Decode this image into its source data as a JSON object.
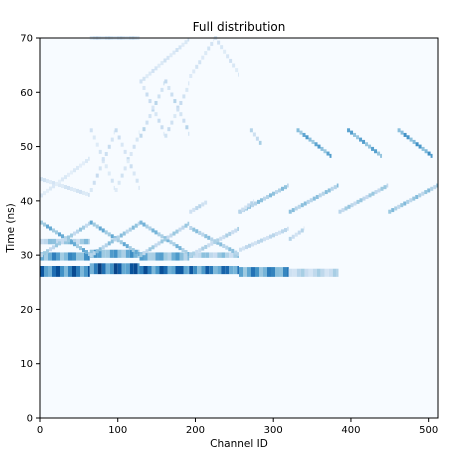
{
  "chart_data": {
    "type": "heatmap",
    "title": "Full distribution",
    "xlabel": "Channel ID",
    "ylabel": "Time (ns)",
    "xlim": [
      0,
      512
    ],
    "ylim": [
      0,
      70
    ],
    "xticks": [
      0,
      100,
      200,
      300,
      400,
      500
    ],
    "yticks": [
      0,
      10,
      20,
      30,
      40,
      50,
      60,
      70
    ],
    "colormap": [
      "#f7fbff",
      "#deebf7",
      "#c6dbef",
      "#9ecae1",
      "#6baed6",
      "#4292c6",
      "#2171b5",
      "#08519c",
      "#08306b"
    ],
    "grid": false,
    "bands": [
      {
        "x0": 0,
        "x1": 64,
        "y0": 26,
        "y1": 28,
        "intensity": 0.9
      },
      {
        "x0": 0,
        "x1": 64,
        "y0": 29,
        "y1": 30.5,
        "intensity": 0.7
      },
      {
        "x0": 0,
        "x1": 64,
        "y0": 32,
        "y1": 33,
        "intensity": 0.45
      },
      {
        "x0": 64,
        "x1": 128,
        "y0": 26.5,
        "y1": 28.5,
        "intensity": 0.95
      },
      {
        "x0": 64,
        "x1": 128,
        "y0": 29.5,
        "y1": 31,
        "intensity": 0.65
      },
      {
        "x0": 128,
        "x1": 192,
        "y0": 26.5,
        "y1": 28,
        "intensity": 0.9
      },
      {
        "x0": 128,
        "x1": 192,
        "y0": 29,
        "y1": 30.5,
        "intensity": 0.6
      },
      {
        "x0": 192,
        "x1": 256,
        "y0": 26.5,
        "y1": 28,
        "intensity": 0.85
      },
      {
        "x0": 192,
        "x1": 256,
        "y0": 29.5,
        "y1": 30.5,
        "intensity": 0.45
      },
      {
        "x0": 256,
        "x1": 320,
        "y0": 26,
        "y1": 27.8,
        "intensity": 0.75
      },
      {
        "x0": 320,
        "x1": 384,
        "y0": 26,
        "y1": 27.5,
        "intensity": 0.35
      }
    ],
    "streaks": [
      {
        "x0": 0,
        "x1": 64,
        "y0": 36,
        "y1": 30,
        "intensity": 0.55
      },
      {
        "x0": 0,
        "x1": 64,
        "y0": 30,
        "y1": 36,
        "intensity": 0.4
      },
      {
        "x0": 64,
        "x1": 128,
        "y0": 36,
        "y1": 30,
        "intensity": 0.55
      },
      {
        "x0": 64,
        "x1": 128,
        "y0": 30,
        "y1": 36,
        "intensity": 0.45
      },
      {
        "x0": 128,
        "x1": 192,
        "y0": 36,
        "y1": 30,
        "intensity": 0.5
      },
      {
        "x0": 128,
        "x1": 192,
        "y0": 30,
        "y1": 36,
        "intensity": 0.4
      },
      {
        "x0": 192,
        "x1": 256,
        "y0": 35,
        "y1": 30,
        "intensity": 0.45
      },
      {
        "x0": 192,
        "x1": 256,
        "y0": 30,
        "y1": 35,
        "intensity": 0.35
      },
      {
        "x0": 256,
        "x1": 320,
        "y0": 31,
        "y1": 35,
        "intensity": 0.3
      },
      {
        "x0": 0,
        "x1": 64,
        "y0": 44,
        "y1": 41,
        "intensity": 0.2
      },
      {
        "x0": 0,
        "x1": 64,
        "y0": 41,
        "y1": 48,
        "intensity": 0.15
      },
      {
        "x0": 64,
        "x1": 96,
        "y0": 42,
        "y1": 53,
        "intensity": 0.25
      },
      {
        "x0": 96,
        "x1": 128,
        "y0": 53,
        "y1": 42,
        "intensity": 0.25
      },
      {
        "x0": 64,
        "x1": 96,
        "y0": 53,
        "y1": 42,
        "intensity": 0.2
      },
      {
        "x0": 96,
        "x1": 128,
        "y0": 42,
        "y1": 53,
        "intensity": 0.2
      },
      {
        "x0": 128,
        "x1": 160,
        "y0": 52,
        "y1": 62,
        "intensity": 0.3
      },
      {
        "x0": 160,
        "x1": 192,
        "y0": 62,
        "y1": 52,
        "intensity": 0.3
      },
      {
        "x0": 128,
        "x1": 160,
        "y0": 62,
        "y1": 52,
        "intensity": 0.25
      },
      {
        "x0": 160,
        "x1": 192,
        "y0": 52,
        "y1": 62,
        "intensity": 0.25
      },
      {
        "x0": 128,
        "x1": 192,
        "y0": 62,
        "y1": 70,
        "intensity": 0.2
      },
      {
        "x0": 192,
        "x1": 224,
        "y0": 63,
        "y1": 70,
        "intensity": 0.2
      },
      {
        "x0": 224,
        "x1": 256,
        "y0": 70,
        "y1": 63,
        "intensity": 0.2
      },
      {
        "x0": 64,
        "x1": 128,
        "y0": 70,
        "y1": 70,
        "intensity": 0.2
      },
      {
        "x0": 256,
        "x1": 320,
        "y0": 38,
        "y1": 43,
        "intensity": 0.45
      },
      {
        "x0": 320,
        "x1": 384,
        "y0": 38,
        "y1": 43,
        "intensity": 0.45
      },
      {
        "x0": 384,
        "x1": 448,
        "y0": 38,
        "y1": 43,
        "intensity": 0.4
      },
      {
        "x0": 448,
        "x1": 512,
        "y0": 38,
        "y1": 43,
        "intensity": 0.45
      },
      {
        "x0": 330,
        "x1": 375,
        "y0": 53,
        "y1": 48,
        "intensity": 0.6
      },
      {
        "x0": 395,
        "x1": 440,
        "y0": 53,
        "y1": 48,
        "intensity": 0.6
      },
      {
        "x0": 460,
        "x1": 505,
        "y0": 53,
        "y1": 48,
        "intensity": 0.65
      },
      {
        "x0": 270,
        "x1": 285,
        "y0": 53,
        "y1": 50,
        "intensity": 0.35
      },
      {
        "x0": 192,
        "x1": 215,
        "y0": 38,
        "y1": 40,
        "intensity": 0.3
      },
      {
        "x0": 320,
        "x1": 340,
        "y0": 33,
        "y1": 35,
        "intensity": 0.3
      },
      {
        "x0": 255,
        "x1": 275,
        "y0": 38,
        "y1": 40,
        "intensity": 0.3
      }
    ]
  }
}
